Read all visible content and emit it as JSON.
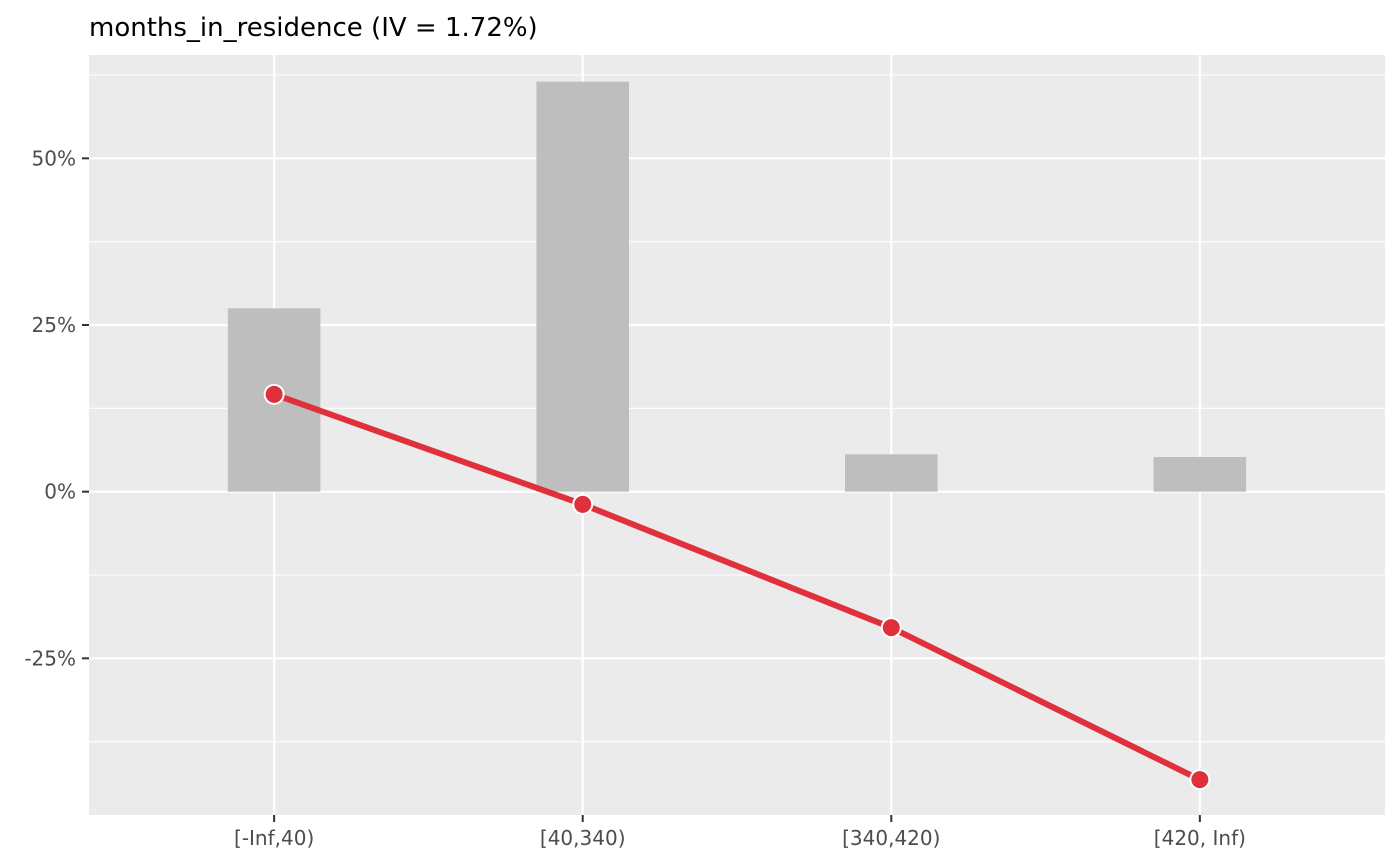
{
  "chart_data": {
    "type": "bar",
    "title": "months_in_residence (IV = 1.72%)",
    "xlabel": "",
    "ylabel": "",
    "categories": [
      "[-Inf,40)",
      "[40,340)",
      "[340,420)",
      "[420, Inf)"
    ],
    "y_ticks": [
      {
        "value": 0.5,
        "label": "50%"
      },
      {
        "value": 0.25,
        "label": "25%"
      },
      {
        "value": 0.0,
        "label": "0%"
      },
      {
        "value": -0.25,
        "label": "-25%"
      }
    ],
    "ylim": [
      -0.485,
      0.655
    ],
    "grid": true,
    "series": [
      {
        "type": "bar",
        "values": [
          0.275,
          0.615,
          0.056,
          0.052
        ],
        "color": "#bebebe"
      },
      {
        "type": "line",
        "values": [
          0.146,
          -0.019,
          -0.204,
          -0.432
        ],
        "color": "#e0303b"
      }
    ],
    "colors": {
      "panel": "#ebebeb",
      "grid": "#ffffff",
      "bar": "#bebebe",
      "line": "#e0303b"
    }
  }
}
